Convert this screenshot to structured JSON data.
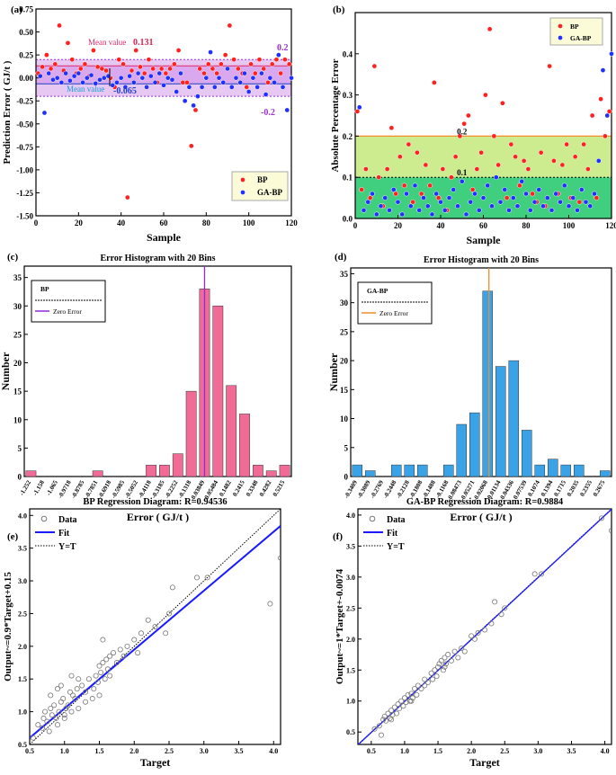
{
  "chart_data": [
    {
      "id": "a",
      "panel_letter": "(a)",
      "type": "scatter",
      "xlabel": "Sample",
      "ylabel": "Prediction Error ( GJ/t )",
      "xlim": [
        0,
        120
      ],
      "ylim": [
        -1.5,
        0.75
      ],
      "xticks": [
        "0",
        "20",
        "40",
        "60",
        "80",
        "100",
        "120"
      ],
      "yticks": [
        "-1.50",
        "-1.25",
        "-1.00",
        "-0.75",
        "-0.50",
        "-0.25",
        "0.00",
        "0.25",
        "0.50",
        "0.75"
      ],
      "bands": {
        "outer": [
          -0.2,
          0.2
        ],
        "inner": [
          -0.065,
          0.131
        ]
      },
      "annotations": {
        "bp_mean_label": "Mean value",
        "bp_mean_value": "0.131",
        "gabp_mean_label": "Mean value",
        "gabp_mean_value": "-0.065",
        "upper_bound": "0.2",
        "lower_bound": "-0.2"
      },
      "legend": [
        "BP",
        "GA-BP"
      ],
      "colors": {
        "bp": "#ff2020",
        "gabp": "#2030ff",
        "band_outer": "#e6c8f2",
        "band_inner": "#d9a8ee",
        "mean_bp": "#e0286a",
        "bound": "#9b30d0"
      },
      "series": [
        {
          "name": "BP",
          "x": [
            1,
            3,
            5,
            7,
            9,
            11,
            13,
            15,
            17,
            19,
            21,
            23,
            25,
            27,
            29,
            31,
            33,
            35,
            37,
            39,
            41,
            43,
            45,
            47,
            49,
            51,
            53,
            55,
            57,
            59,
            61,
            63,
            65,
            67,
            69,
            71,
            73,
            75,
            77,
            79,
            81,
            83,
            85,
            87,
            89,
            91,
            93,
            95,
            97,
            99,
            101,
            103,
            105,
            107,
            109,
            111,
            113,
            115,
            117,
            119
          ],
          "y": [
            0.05,
            0.12,
            0.25,
            0.1,
            0.15,
            0.57,
            0.08,
            0.38,
            0.2,
            0.05,
            0.1,
            0.15,
            0.02,
            0.3,
            0.12,
            0.1,
            0.08,
            0.0,
            -0.1,
            0.2,
            0.15,
            -1.3,
            0.08,
            0.3,
            0.12,
            0.05,
            0.2,
            0.1,
            -0.05,
            0.1,
            0.05,
            0.1,
            0.15,
            0.3,
            -0.05,
            -0.05,
            -0.74,
            -0.35,
            0.1,
            0.05,
            0.15,
            0.1,
            0.05,
            0.15,
            0.25,
            0.57,
            0.2,
            0.1,
            0.05,
            -0.1,
            0.15,
            0.05,
            0.2,
            0.1,
            -0.05,
            0.15,
            0.2,
            0.05,
            0.2,
            0.15
          ]
        },
        {
          "name": "GA-BP",
          "x": [
            2,
            4,
            6,
            8,
            10,
            12,
            14,
            16,
            18,
            20,
            22,
            24,
            26,
            28,
            30,
            32,
            34,
            36,
            38,
            40,
            42,
            44,
            46,
            48,
            50,
            52,
            54,
            56,
            58,
            60,
            62,
            64,
            66,
            68,
            70,
            72,
            74,
            76,
            78,
            80,
            82,
            84,
            86,
            88,
            90,
            92,
            94,
            96,
            98,
            100,
            102,
            104,
            106,
            108,
            110,
            112,
            114,
            116,
            118,
            120
          ],
          "y": [
            0.02,
            -0.38,
            0.05,
            -0.02,
            0.0,
            -0.05,
            0.05,
            -0.03,
            0.02,
            0.05,
            -0.05,
            0.0,
            0.03,
            -0.06,
            -0.02,
            0.0,
            0.02,
            -0.08,
            -0.05,
            0.0,
            -0.1,
            0.02,
            -0.05,
            0.05,
            0.0,
            -0.1,
            0.02,
            -0.05,
            0.05,
            -0.08,
            0.0,
            -0.02,
            -0.15,
            0.05,
            -0.25,
            -0.1,
            -0.3,
            -0.2,
            -0.1,
            0.0,
            0.28,
            -0.1,
            0.0,
            -0.05,
            0.1,
            -0.1,
            0.0,
            -0.05,
            0.05,
            -0.15,
            0.0,
            -0.1,
            0.05,
            -0.18,
            0.0,
            -0.05,
            0.25,
            -0.1,
            -0.35,
            0.0
          ]
        }
      ]
    },
    {
      "id": "b",
      "panel_letter": "(b)",
      "type": "scatter",
      "xlabel": "Sample",
      "ylabel": "Absolute Percentage Error",
      "xlim": [
        0,
        120
      ],
      "ylim": [
        0,
        0.5
      ],
      "xticks": [
        "0",
        "20",
        "40",
        "60",
        "80",
        "100",
        "120"
      ],
      "yticks": [
        "0.0",
        "0.1",
        "0.2",
        "0.3",
        "0.4"
      ],
      "bands": {
        "green_dark": [
          0,
          0.1
        ],
        "green_light": [
          0.1,
          0.2
        ]
      },
      "annotations": {
        "line_02": "0.2",
        "line_01": "0.1"
      },
      "legend": [
        "BP",
        "GA-BP"
      ],
      "colors": {
        "bp": "#ff2020",
        "gabp": "#2030ff",
        "green_dark": "#3fcf7e",
        "green_light": "#cdeb8f",
        "line_02": "#f28c28"
      },
      "series": [
        {
          "name": "BP",
          "x": [
            1,
            3,
            5,
            7,
            9,
            11,
            13,
            15,
            17,
            19,
            21,
            23,
            25,
            27,
            29,
            31,
            33,
            35,
            37,
            39,
            41,
            43,
            45,
            47,
            49,
            51,
            53,
            55,
            57,
            59,
            61,
            63,
            65,
            67,
            69,
            71,
            73,
            75,
            77,
            79,
            81,
            83,
            85,
            87,
            89,
            91,
            93,
            95,
            97,
            99,
            101,
            103,
            105,
            107,
            109,
            111,
            113,
            115,
            117,
            119
          ],
          "y": [
            0.26,
            0.07,
            0.12,
            0.05,
            0.37,
            0.1,
            0.03,
            0.12,
            0.22,
            0.06,
            0.15,
            0.08,
            0.18,
            0.04,
            0.16,
            0.06,
            0.13,
            0.08,
            0.33,
            0.05,
            0.12,
            0.02,
            0.1,
            0.15,
            0.2,
            0.23,
            0.25,
            0.07,
            0.12,
            0.16,
            0.3,
            0.46,
            0.2,
            0.13,
            0.28,
            0.05,
            0.18,
            0.15,
            0.08,
            0.14,
            0.12,
            0.06,
            0.04,
            0.16,
            0.03,
            0.37,
            0.14,
            0.06,
            0.13,
            0.18,
            0.05,
            0.15,
            0.04,
            0.18,
            0.12,
            0.25,
            0.05,
            0.29,
            0.2,
            0.26
          ]
        },
        {
          "name": "GA-BP",
          "x": [
            2,
            4,
            6,
            8,
            10,
            12,
            14,
            16,
            18,
            20,
            22,
            24,
            26,
            28,
            30,
            32,
            34,
            36,
            38,
            40,
            42,
            44,
            46,
            48,
            50,
            52,
            54,
            56,
            58,
            60,
            62,
            64,
            66,
            68,
            70,
            72,
            74,
            76,
            78,
            80,
            82,
            84,
            86,
            88,
            90,
            92,
            94,
            96,
            98,
            100,
            102,
            104,
            106,
            108,
            110,
            112,
            114,
            116,
            118,
            120
          ],
          "y": [
            0.27,
            0.02,
            0.04,
            0.06,
            0.01,
            0.03,
            0.05,
            0.02,
            0.07,
            0.04,
            0.01,
            0.06,
            0.03,
            0.08,
            0.02,
            0.05,
            0.03,
            0.01,
            0.06,
            0.04,
            0.02,
            0.05,
            0.07,
            0.03,
            0.09,
            0.01,
            0.04,
            0.06,
            0.02,
            0.05,
            0.08,
            0.03,
            0.1,
            0.04,
            0.07,
            0.02,
            0.05,
            0.03,
            0.09,
            0.06,
            0.02,
            0.04,
            0.07,
            0.03,
            0.05,
            0.02,
            0.06,
            0.04,
            0.08,
            0.03,
            0.05,
            0.02,
            0.07,
            0.04,
            0.03,
            0.06,
            0.14,
            0.36,
            0.25,
            0.4
          ]
        }
      ]
    },
    {
      "id": "c",
      "panel_letter": "(c)",
      "type": "bar",
      "title": "Error Histogram with 20 Bins",
      "xlabel": "Error ( GJ/t )",
      "ylabel": "Number",
      "ylim": [
        0,
        37
      ],
      "yticks": [
        "0",
        "5",
        "10",
        "15",
        "20",
        "25",
        "30",
        "35"
      ],
      "categories": [
        "-1.252",
        "-1.158",
        "-1.065",
        "-0.9718",
        "-0.8785",
        "-0.7851",
        "-0.6918",
        "-0.5985",
        "-0.5052",
        "-0.4118",
        "-0.3185",
        "-0.2252",
        "-0.1318",
        "-0.03849",
        "0.05484",
        "0.1482",
        "0.2415",
        "0.3348",
        "0.4282",
        "0.5215"
      ],
      "values": [
        1,
        0,
        0,
        0,
        0,
        1,
        0,
        0,
        0,
        2,
        2,
        4,
        15,
        33,
        30,
        16,
        11,
        2,
        1,
        2
      ],
      "zero_index": 13.5,
      "legend_title": "BP",
      "legend_zero": "Zero Error",
      "colors": {
        "bar": "#f06c97",
        "zero": "#8a2be2"
      }
    },
    {
      "id": "d",
      "panel_letter": "(d)",
      "type": "bar",
      "title": "Error Histogram with 20 Bins",
      "xlabel": "Error ( GJ/t )",
      "ylabel": "Number",
      "ylim": [
        0,
        36
      ],
      "yticks": [
        "0",
        "5",
        "10",
        "15",
        "20",
        "25",
        "30",
        "35"
      ],
      "categories": [
        "-0.3409",
        "-0.3089",
        "-0.2769",
        "-0.2448",
        "-0.2128",
        "-0.1808",
        "-0.1488",
        "-0.1168",
        "-0.08473",
        "-0.05271",
        "-0.02068",
        "0.01134",
        "0.04336",
        "0.07539",
        "0.1074",
        "0.1394",
        "0.1715",
        "0.2035",
        "0.2355",
        "0.2675"
      ],
      "values": [
        2,
        1,
        0,
        2,
        2,
        2,
        0,
        2,
        9,
        11,
        32,
        19,
        20,
        8,
        2,
        3,
        2,
        2,
        0,
        1
      ],
      "zero_index": 10.6,
      "legend_title": "GA-BP",
      "legend_zero": "Zero Error",
      "colors": {
        "bar": "#3aa3e8",
        "zero": "#f28c28"
      }
    },
    {
      "id": "e",
      "panel_letter": "(e)",
      "type": "scatter",
      "title": "BP Regression Diagram:  R=0.94536",
      "xlabel": "Target",
      "ylabel": "Output~=0.9*Target+0.15",
      "xlim": [
        0.5,
        4.1
      ],
      "ylim": [
        0.5,
        4.1
      ],
      "xticks": [
        "0.5",
        "1.0",
        "1.5",
        "2.0",
        "2.5",
        "3.0",
        "3.5",
        "4.0"
      ],
      "yticks": [
        "0.5",
        "1.0",
        "1.5",
        "2.0",
        "2.5",
        "3.0",
        "3.5",
        "4.0"
      ],
      "legend": [
        "Data",
        "Fit",
        "Y=T"
      ],
      "fit": {
        "slope": 0.9,
        "intercept": 0.15
      },
      "colors": {
        "fit": "#1a1aff",
        "data": "#777777"
      },
      "series": [
        {
          "name": "Data",
          "x": [
            0.55,
            0.62,
            0.68,
            0.7,
            0.72,
            0.75,
            0.78,
            0.8,
            0.82,
            0.85,
            0.88,
            0.9,
            0.92,
            0.95,
            0.98,
            1.0,
            1.02,
            1.05,
            1.08,
            1.1,
            1.12,
            1.15,
            1.18,
            1.2,
            1.25,
            1.3,
            1.35,
            1.4,
            1.42,
            1.45,
            1.48,
            1.5,
            1.52,
            1.55,
            1.58,
            1.6,
            1.62,
            1.65,
            1.7,
            1.75,
            1.8,
            1.85,
            1.9,
            2.0,
            2.05,
            2.1,
            2.2,
            2.3,
            2.45,
            2.5,
            2.55,
            2.9,
            3.05,
            3.95,
            4.1,
            0.8,
            0.95,
            1.1,
            1.3,
            1.5,
            1.55,
            1.65,
            1.0,
            0.9,
            1.2
          ],
          "y": [
            0.6,
            0.8,
            0.75,
            0.9,
            1.0,
            0.85,
            0.7,
            1.05,
            0.95,
            1.1,
            0.9,
            0.8,
            1.0,
            1.15,
            1.2,
            0.95,
            1.05,
            1.1,
            1.3,
            1.0,
            1.25,
            1.2,
            1.35,
            1.05,
            1.4,
            1.3,
            1.5,
            1.2,
            1.35,
            1.55,
            1.45,
            1.7,
            1.6,
            2.1,
            1.5,
            1.8,
            1.65,
            1.85,
            1.9,
            1.75,
            1.95,
            1.85,
            2.0,
            2.1,
            1.9,
            2.2,
            2.4,
            2.3,
            2.2,
            2.5,
            2.9,
            3.05,
            3.05,
            2.65,
            3.35,
            1.25,
            1.4,
            1.55,
            1.15,
            1.25,
            1.75,
            1.55,
            0.9,
            1.35,
            1.5
          ]
        }
      ]
    },
    {
      "id": "f",
      "panel_letter": "(f)",
      "type": "scatter",
      "title": "GA-BP Regression Diagram:  R=0.9884",
      "xlabel": "Target",
      "ylabel": "Output~=1*Target+-0.0074",
      "xlim": [
        0.3,
        4.1
      ],
      "ylim": [
        0.3,
        4.1
      ],
      "xticks": [
        "0.5",
        "1.0",
        "1.5",
        "2.0",
        "2.5",
        "3.0",
        "3.5",
        "4.0"
      ],
      "yticks": [
        "0.5",
        "1.0",
        "1.5",
        "2.0",
        "2.5",
        "3.0",
        "3.5",
        "4.0"
      ],
      "legend": [
        "Data",
        "Fit",
        "Y=T"
      ],
      "fit": {
        "slope": 1.0,
        "intercept": -0.0074
      },
      "colors": {
        "fit": "#1a1aff",
        "data": "#777777"
      },
      "series": [
        {
          "name": "Data",
          "x": [
            0.55,
            0.62,
            0.68,
            0.7,
            0.72,
            0.75,
            0.78,
            0.8,
            0.82,
            0.85,
            0.88,
            0.9,
            0.92,
            0.95,
            0.98,
            1.0,
            1.02,
            1.05,
            1.08,
            1.1,
            1.12,
            1.15,
            1.18,
            1.2,
            1.25,
            1.3,
            1.35,
            1.4,
            1.42,
            1.45,
            1.48,
            1.5,
            1.52,
            1.55,
            1.58,
            1.6,
            1.62,
            1.65,
            1.7,
            1.75,
            1.8,
            1.85,
            1.9,
            2.0,
            2.05,
            2.1,
            2.2,
            2.3,
            2.35,
            2.45,
            2.5,
            2.95,
            3.05,
            3.95,
            4.1,
            0.8,
            1.1,
            1.3,
            1.6,
            0.65
          ],
          "y": [
            0.55,
            0.6,
            0.7,
            0.75,
            0.68,
            0.8,
            0.72,
            0.85,
            0.78,
            0.9,
            0.8,
            0.95,
            0.88,
            1.0,
            0.92,
            1.05,
            0.98,
            1.1,
            1.0,
            1.12,
            1.05,
            1.2,
            1.1,
            1.25,
            1.2,
            1.35,
            1.3,
            1.45,
            1.35,
            1.5,
            1.4,
            1.55,
            1.6,
            1.65,
            1.5,
            1.7,
            1.6,
            1.75,
            1.65,
            1.8,
            1.7,
            1.85,
            1.8,
            2.05,
            2.0,
            2.1,
            2.15,
            2.25,
            2.6,
            2.4,
            2.5,
            3.05,
            3.05,
            3.95,
            3.75,
            0.7,
            1.0,
            1.25,
            1.55,
            0.45
          ]
        }
      ]
    }
  ]
}
